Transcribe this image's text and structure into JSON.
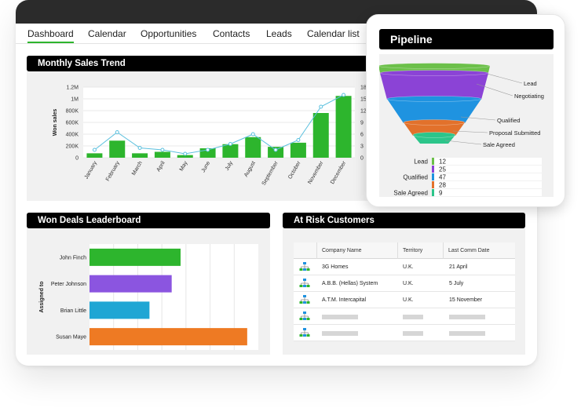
{
  "nav": {
    "items": [
      "Dashboard",
      "Calendar",
      "Opportunities",
      "Contacts",
      "Leads",
      "Calendar list"
    ],
    "active": "Dashboard",
    "accent": "#2db52d"
  },
  "monthly_sales": {
    "title": "Monthly Sales Trend",
    "ylabel_left": "Won sales",
    "left_ticks": [
      "0",
      "200K",
      "400K",
      "600K",
      "800K",
      "1M",
      "1.2M"
    ],
    "right_ticks": [
      "0",
      "3",
      "6",
      "9",
      "12",
      "15",
      "18"
    ],
    "bar_color": "#2db52d",
    "line_color": "#5bc0de"
  },
  "chart_data": [
    {
      "type": "bar",
      "title": "Monthly Sales Trend",
      "ylabel": "Won sales",
      "categories": [
        "January",
        "February",
        "March",
        "April",
        "May",
        "June",
        "July",
        "August",
        "September",
        "October",
        "November",
        "December"
      ],
      "ylim": [
        0,
        1200000
      ],
      "y2lim": [
        0,
        18
      ],
      "series": [
        {
          "values": [
            75000,
            290000,
            75000,
            100000,
            45000,
            160000,
            230000,
            350000,
            185000,
            255000,
            760000,
            1050000
          ]
        },
        {
          "axis": "right",
          "render": "line",
          "values": [
            2,
            6.5,
            2.5,
            2,
            1,
            2,
            3.5,
            6,
            2,
            4.5,
            13,
            16
          ]
        }
      ]
    },
    {
      "type": "bar",
      "orientation": "horizontal",
      "title": "Won Deals Leaderboard",
      "ylabel": "Assigned to",
      "categories": [
        "John Finch",
        "Peter Johnson",
        "Brian Little",
        "Susan Maye"
      ],
      "values": [
        2.05,
        1.85,
        1.35,
        3.55
      ],
      "xlim": [
        0,
        3.8
      ],
      "colors": [
        "#2db52d",
        "#8b55e0",
        "#1fa6d4",
        "#ee7a23"
      ]
    },
    {
      "type": "funnel",
      "title": "Pipeline",
      "categories": [
        "Lead",
        "Negotiating",
        "Qualified",
        "Proposal Submitted",
        "Sale Agreed"
      ],
      "colors": [
        "#6cc04a",
        "#8b43d6",
        "#1f93e0",
        "#e2712b",
        "#2cc58a"
      ]
    }
  ],
  "leaderboard": {
    "title": "Won Deals Leaderboard",
    "ylabel": "Assigned to"
  },
  "pipeline": {
    "title": "Pipeline",
    "stages": [
      "Lead",
      "Negotiating",
      "Qualified",
      "Proposal Submitted",
      "Sale Agreed"
    ],
    "table": [
      {
        "label": "Lead",
        "value": "12",
        "color": "#6cc04a"
      },
      {
        "label": "",
        "value": "25",
        "color": "#8b43d6"
      },
      {
        "label": "Qualified",
        "value": "47",
        "color": "#1f93e0"
      },
      {
        "label": "",
        "value": "28",
        "color": "#e2712b"
      },
      {
        "label": "Sale Agreed",
        "value": "9",
        "color": "#2cc58a"
      }
    ]
  },
  "at_risk": {
    "title": "At Risk Customers",
    "columns": [
      "Company Name",
      "Territory",
      "Last Comm Date"
    ],
    "rows": [
      {
        "icon": "org-chart-icon",
        "company": "3G Homes",
        "territory": "U.K.",
        "date": "21 April"
      },
      {
        "icon": "org-chart-icon",
        "company": "A.B.B. (Hellas) System",
        "territory": "U.K.",
        "date": "5 July"
      },
      {
        "icon": "org-chart-icon",
        "company": "A.T.M. Intercapital",
        "territory": "U.K.",
        "date": "15 November"
      }
    ],
    "placeholder_rows": 2
  }
}
